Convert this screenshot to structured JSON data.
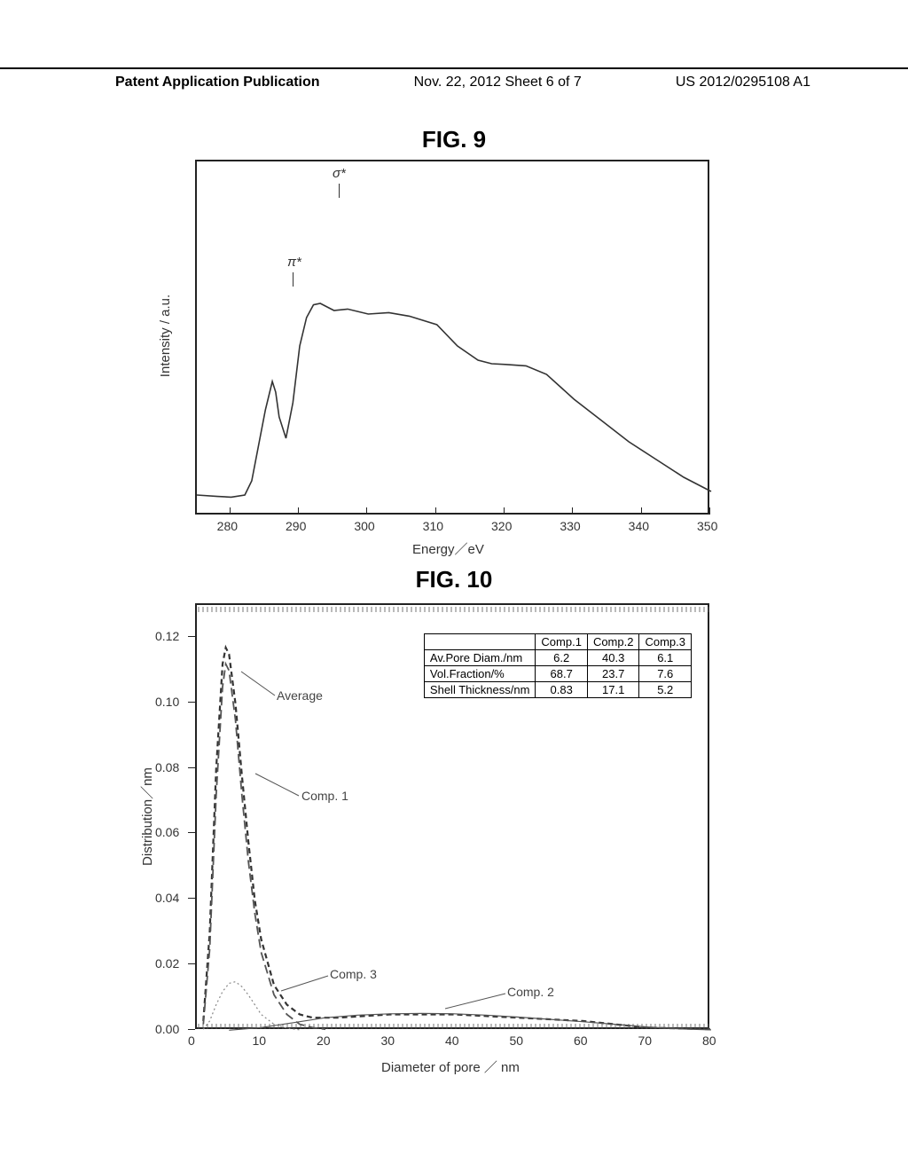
{
  "header": {
    "left": "Patent Application Publication",
    "center": "Nov. 22, 2012  Sheet 6 of 7",
    "right": "US 2012/0295108 A1"
  },
  "fig9": {
    "label": "FIG.  9",
    "ylabel": "Intensity / a.u.",
    "xlabel": "Energy／eV",
    "xticks": [
      "280",
      "290",
      "300",
      "310",
      "320",
      "330",
      "340",
      "350"
    ],
    "xlim": [
      275,
      350
    ],
    "anno_pi": "π*",
    "anno_sigma": "σ*",
    "curve_points": [
      [
        275,
        470
      ],
      [
        278,
        472
      ],
      [
        280,
        473
      ],
      [
        282,
        470
      ],
      [
        283,
        450
      ],
      [
        284,
        400
      ],
      [
        285,
        350
      ],
      [
        286,
        310
      ],
      [
        286.5,
        325
      ],
      [
        287,
        360
      ],
      [
        288,
        390
      ],
      [
        289,
        340
      ],
      [
        290,
        260
      ],
      [
        291,
        220
      ],
      [
        292,
        202
      ],
      [
        293,
        200
      ],
      [
        294,
        205
      ],
      [
        295,
        210
      ],
      [
        297,
        208
      ],
      [
        300,
        215
      ],
      [
        303,
        213
      ],
      [
        306,
        218
      ],
      [
        310,
        230
      ],
      [
        313,
        260
      ],
      [
        316,
        280
      ],
      [
        318,
        285
      ],
      [
        320,
        286
      ],
      [
        323,
        288
      ],
      [
        326,
        300
      ],
      [
        330,
        335
      ],
      [
        334,
        365
      ],
      [
        338,
        395
      ],
      [
        342,
        420
      ],
      [
        346,
        445
      ],
      [
        350,
        465
      ]
    ],
    "line_color": "#333333",
    "line_width": 1.6
  },
  "fig10": {
    "label": "FIG.  10",
    "ylabel": "Distribution／nm",
    "xlabel": "Diameter of pore ／ nm",
    "xticks": [
      "0",
      "10",
      "20",
      "30",
      "40",
      "50",
      "60",
      "70",
      "80"
    ],
    "yticks": [
      "0.00",
      "0.02",
      "0.04",
      "0.06",
      "0.08",
      "0.10",
      "0.12"
    ],
    "xlim": [
      0,
      80
    ],
    "ylim": [
      0,
      0.13
    ],
    "curve_labels": {
      "average": "Average",
      "comp1": "Comp. 1",
      "comp2": "Comp. 2",
      "comp3": "Comp. 3"
    },
    "table": {
      "headers": [
        "",
        "Comp.1",
        "Comp.2",
        "Comp.3"
      ],
      "rows": [
        [
          "Av.Pore Diam./nm",
          "6.2",
          "40.3",
          "6.1"
        ],
        [
          "Vol.Fraction/%",
          "68.7",
          "23.7",
          "7.6"
        ],
        [
          "Shell Thickness/nm",
          "0.83",
          "17.1",
          "5.2"
        ]
      ]
    },
    "colors": {
      "average": "#555555",
      "comp1": "#555555",
      "comp2": "#555555",
      "comp3": "#888888"
    },
    "average_points": [
      [
        1,
        0.003
      ],
      [
        2,
        0.03
      ],
      [
        3,
        0.08
      ],
      [
        4,
        0.112
      ],
      [
        4.5,
        0.117
      ],
      [
        5,
        0.115
      ],
      [
        6,
        0.1
      ],
      [
        7,
        0.078
      ],
      [
        8,
        0.058
      ],
      [
        9,
        0.04
      ],
      [
        10,
        0.028
      ],
      [
        12,
        0.014
      ],
      [
        14,
        0.008
      ],
      [
        16,
        0.005
      ],
      [
        18,
        0.004
      ],
      [
        22,
        0.004
      ],
      [
        30,
        0.005
      ],
      [
        40,
        0.005
      ],
      [
        50,
        0.004
      ],
      [
        60,
        0.003
      ],
      [
        70,
        0.001
      ],
      [
        80,
        0.0005
      ]
    ],
    "comp1_points": [
      [
        1,
        0.002
      ],
      [
        2,
        0.025
      ],
      [
        3,
        0.072
      ],
      [
        4,
        0.105
      ],
      [
        4.5,
        0.112
      ],
      [
        5,
        0.11
      ],
      [
        6,
        0.095
      ],
      [
        7,
        0.072
      ],
      [
        8,
        0.052
      ],
      [
        9,
        0.036
      ],
      [
        10,
        0.024
      ],
      [
        12,
        0.011
      ],
      [
        14,
        0.005
      ],
      [
        16,
        0.002
      ],
      [
        18,
        0.001
      ],
      [
        20,
        0.0005
      ]
    ],
    "comp2_points": [
      [
        5,
        0.0002
      ],
      [
        10,
        0.001
      ],
      [
        15,
        0.0025
      ],
      [
        20,
        0.004
      ],
      [
        25,
        0.0048
      ],
      [
        30,
        0.0052
      ],
      [
        35,
        0.0053
      ],
      [
        40,
        0.0052
      ],
      [
        45,
        0.0048
      ],
      [
        50,
        0.0042
      ],
      [
        55,
        0.0035
      ],
      [
        60,
        0.0028
      ],
      [
        65,
        0.002
      ],
      [
        70,
        0.0012
      ],
      [
        75,
        0.0006
      ],
      [
        80,
        0.0003
      ]
    ],
    "comp3_points": [
      [
        1,
        0.0005
      ],
      [
        2,
        0.003
      ],
      [
        3,
        0.008
      ],
      [
        4,
        0.012
      ],
      [
        5,
        0.0145
      ],
      [
        6,
        0.015
      ],
      [
        7,
        0.0135
      ],
      [
        8,
        0.011
      ],
      [
        9,
        0.008
      ],
      [
        10,
        0.005
      ],
      [
        12,
        0.002
      ],
      [
        14,
        0.0008
      ],
      [
        16,
        0.0003
      ]
    ]
  }
}
